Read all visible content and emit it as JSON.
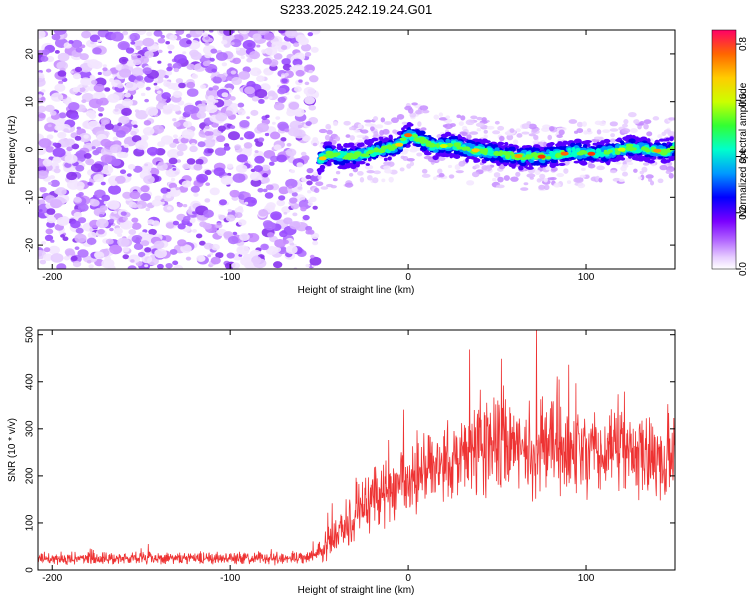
{
  "title": "S233.2025.242.19.24.G01",
  "chart_data": [
    {
      "type": "heatmap",
      "title": "S233.2025.242.19.24.G01",
      "xlabel": "Height of straight line (km)",
      "ylabel": "Frequency (Hz)",
      "xlim": [
        -208,
        150
      ],
      "ylim": [
        -25,
        25
      ],
      "x_ticks": [
        "-200",
        "-100",
        "0",
        "100"
      ],
      "y_ticks": [
        "20",
        "10",
        "0",
        "-10",
        "-20"
      ],
      "noise_region_x": [
        -208,
        -52
      ],
      "signal_region_x": [
        -52,
        150
      ],
      "signal_ridge": {
        "x": [
          -52,
          -45,
          -35,
          -25,
          -15,
          -5,
          0,
          5,
          15,
          25,
          35,
          45,
          55,
          65,
          75,
          85,
          95,
          105,
          115,
          125,
          135,
          145,
          150
        ],
        "frequency": [
          -3,
          -1,
          -1.5,
          -1,
          0,
          1,
          3,
          2.5,
          0.5,
          1,
          0,
          -0.5,
          -1,
          -1.5,
          -1.5,
          -1,
          -0.5,
          -1,
          -0.5,
          0.5,
          0,
          -0.5,
          0.5
        ]
      },
      "colorbar": {
        "label": "Normalized spectral amplitude",
        "range": [
          0.0,
          0.85
        ],
        "ticks": [
          "0.0",
          "0.2",
          "0.4",
          "0.6",
          "0.8"
        ]
      }
    },
    {
      "type": "line",
      "xlabel": "Height of straight line (km)",
      "ylabel": "SNR (10 * v/v)",
      "xlim": [
        -208,
        150
      ],
      "ylim": [
        0,
        510
      ],
      "x_ticks": [
        "-200",
        "-100",
        "0",
        "100"
      ],
      "y_ticks": [
        "500",
        "400",
        "300",
        "200",
        "100",
        "0"
      ],
      "color": "#ee3333",
      "series": [
        {
          "name": "SNR",
          "x": [
            -208,
            -150,
            -100,
            -55,
            -40,
            -30,
            -20,
            -10,
            0,
            10,
            20,
            30,
            40,
            50,
            60,
            70,
            80,
            90,
            100,
            110,
            120,
            130,
            140,
            150
          ],
          "mean": [
            25,
            25,
            25,
            25,
            80,
            120,
            150,
            170,
            190,
            210,
            230,
            250,
            260,
            270,
            270,
            265,
            260,
            250,
            250,
            245,
            245,
            240,
            235,
            230
          ],
          "spread": [
            12,
            12,
            12,
            12,
            45,
            55,
            60,
            65,
            70,
            75,
            80,
            85,
            90,
            95,
            100,
            100,
            95,
            90,
            90,
            85,
            85,
            80,
            80,
            80
          ]
        }
      ]
    }
  ]
}
